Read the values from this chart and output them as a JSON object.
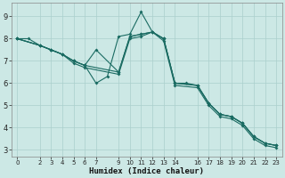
{
  "xlabel": "Humidex (Indice chaleur)",
  "ylabel": "",
  "bg_color": "#cce8e5",
  "grid_color": "#aacfcc",
  "line_color": "#1a6b62",
  "xlim": [
    -0.5,
    23.5
  ],
  "ylim": [
    2.7,
    9.6
  ],
  "xticks": [
    0,
    2,
    3,
    4,
    5,
    6,
    7,
    9,
    10,
    11,
    12,
    13,
    14,
    16,
    17,
    18,
    19,
    20,
    21,
    22,
    23
  ],
  "yticks": [
    3,
    4,
    5,
    6,
    7,
    8,
    9
  ],
  "line1_x": [
    0,
    1,
    2,
    3,
    4,
    5,
    6,
    7,
    8,
    9,
    10,
    11,
    12,
    13,
    14,
    15,
    16,
    17,
    18,
    19,
    20,
    21,
    22,
    23
  ],
  "line1_y": [
    8.0,
    8.0,
    7.7,
    7.5,
    7.3,
    7.0,
    6.8,
    6.0,
    6.3,
    8.1,
    8.2,
    9.2,
    8.3,
    8.0,
    6.0,
    6.0,
    5.9,
    5.1,
    4.6,
    4.5,
    4.2,
    3.6,
    3.3,
    3.2
  ],
  "line2_x": [
    0,
    2,
    3,
    4,
    5,
    6,
    7,
    9,
    10,
    11,
    12,
    13,
    14,
    16,
    17,
    18,
    19,
    20,
    21,
    22,
    23
  ],
  "line2_y": [
    8.0,
    7.7,
    7.5,
    7.3,
    7.0,
    6.8,
    7.5,
    6.5,
    8.1,
    8.2,
    8.3,
    8.0,
    6.0,
    5.9,
    5.1,
    4.6,
    4.5,
    4.2,
    3.6,
    3.3,
    3.2
  ],
  "line3_x": [
    0,
    2,
    3,
    4,
    5,
    6,
    9,
    10,
    11,
    12,
    13,
    14,
    16,
    17,
    18,
    19,
    20,
    21,
    22,
    23
  ],
  "line3_y": [
    8.0,
    7.7,
    7.5,
    7.3,
    7.0,
    6.8,
    6.5,
    8.1,
    8.2,
    8.3,
    8.0,
    6.0,
    5.9,
    5.1,
    4.6,
    4.5,
    4.2,
    3.6,
    3.3,
    3.2
  ],
  "line4_x": [
    0,
    2,
    3,
    4,
    5,
    6,
    9,
    10,
    11,
    12,
    13,
    14,
    16,
    17,
    18,
    19,
    20,
    21,
    22,
    23
  ],
  "line4_y": [
    8.0,
    7.7,
    7.5,
    7.3,
    6.9,
    6.7,
    6.4,
    8.0,
    8.1,
    8.3,
    7.9,
    5.9,
    5.8,
    5.0,
    4.5,
    4.4,
    4.1,
    3.5,
    3.2,
    3.1
  ]
}
